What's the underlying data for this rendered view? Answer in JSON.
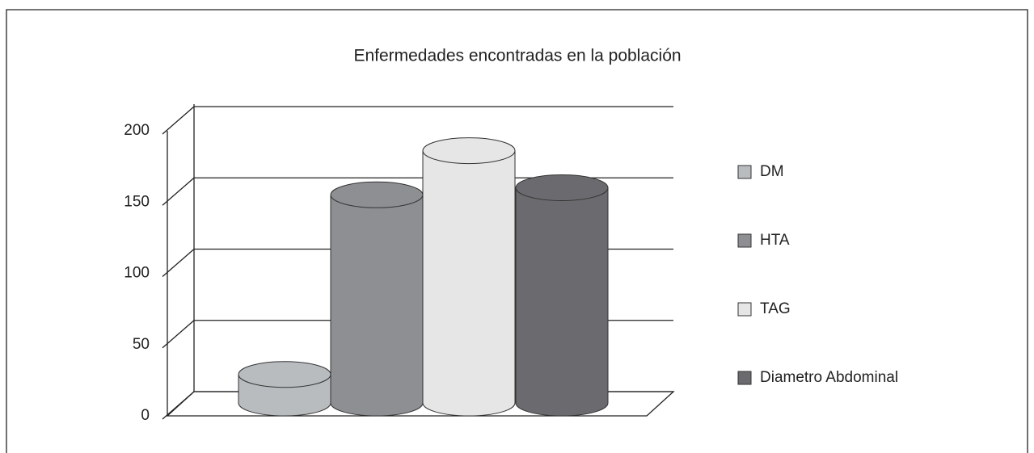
{
  "chart_data": {
    "type": "bar3d",
    "title": "Enfermedades encontradas en la población",
    "categories": [
      null
    ],
    "series": [
      {
        "name": "DM",
        "color": "#b9bcbf",
        "values": [
          20
        ]
      },
      {
        "name": "HTA",
        "color": "#8e8f93",
        "values": [
          146
        ]
      },
      {
        "name": "TAG",
        "color": "#e6e6e6",
        "values": [
          177
        ]
      },
      {
        "name": "Diametro Abdominal",
        "color": "#6b6b6f",
        "values": [
          151
        ]
      }
    ],
    "ylim": [
      0,
      200
    ],
    "yticks": [
      0,
      50,
      100,
      150,
      200
    ],
    "grid": true,
    "legend": "right"
  }
}
